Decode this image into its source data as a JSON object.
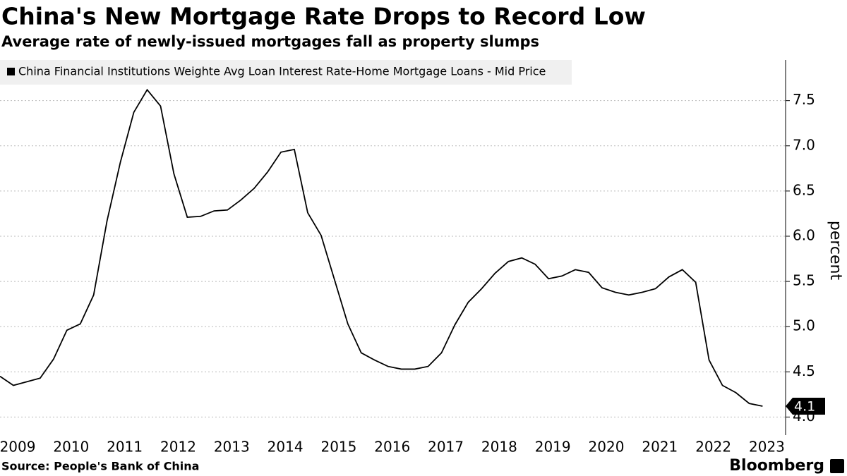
{
  "chart_data": {
    "type": "line",
    "title": "China's New Mortgage Rate Drops to Record Low",
    "subtitle": "Average rate of newly-issued mortgages fall as property slumps",
    "y_label": "percent",
    "source": "Source: People's Bank of China",
    "brand": "Bloomberg",
    "x": [
      2009.17,
      2009.42,
      2009.67,
      2009.92,
      2010.17,
      2010.42,
      2010.67,
      2010.92,
      2011.17,
      2011.42,
      2011.67,
      2011.92,
      2012.17,
      2012.42,
      2012.67,
      2012.92,
      2013.17,
      2013.42,
      2013.67,
      2013.92,
      2014.17,
      2014.42,
      2014.67,
      2014.92,
      2015.17,
      2015.42,
      2015.67,
      2015.92,
      2016.17,
      2016.42,
      2016.67,
      2016.92,
      2017.17,
      2017.42,
      2017.67,
      2017.92,
      2018.17,
      2018.42,
      2018.67,
      2018.92,
      2019.17,
      2019.42,
      2019.67,
      2019.92,
      2020.17,
      2020.42,
      2020.67,
      2020.92,
      2021.17,
      2021.42,
      2021.67,
      2021.92,
      2022.17,
      2022.42,
      2022.67,
      2022.92,
      2023.17,
      2023.42
    ],
    "series": [
      {
        "name": "China Financial Institutions Weighte Avg Loan Interest Rate-Home Mortgage Loans - Mid Price",
        "color": "#000000",
        "values": [
          4.45,
          4.35,
          4.39,
          4.43,
          4.64,
          4.96,
          5.03,
          5.35,
          6.17,
          6.82,
          7.37,
          7.62,
          7.44,
          6.69,
          6.21,
          6.22,
          6.28,
          6.29,
          6.4,
          6.53,
          6.71,
          6.93,
          6.96,
          6.26,
          6.01,
          5.52,
          5.03,
          4.71,
          4.63,
          4.56,
          4.53,
          4.53,
          4.56,
          4.71,
          5.02,
          5.27,
          5.42,
          5.59,
          5.72,
          5.76,
          5.69,
          5.53,
          5.56,
          5.63,
          5.6,
          5.43,
          5.38,
          5.35,
          5.38,
          5.42,
          5.55,
          5.63,
          5.49,
          4.63,
          4.35,
          4.27,
          4.15,
          4.12
        ],
        "value_labels": [
          null,
          null,
          null,
          null,
          null,
          null,
          null,
          null,
          null,
          null,
          null,
          null,
          null,
          null,
          null,
          null,
          null,
          null,
          null,
          null,
          null,
          null,
          null,
          null,
          null,
          null,
          null,
          null,
          null,
          null,
          null,
          null,
          null,
          null,
          null,
          null,
          null,
          null,
          null,
          null,
          null,
          null,
          null,
          null,
          null,
          null,
          null,
          null,
          null,
          null,
          null,
          null,
          null,
          null,
          null,
          null,
          null,
          "4.1"
        ]
      }
    ],
    "xlim": [
      2009.17,
      2023.85
    ],
    "xticks": [
      {
        "value": 2009.5,
        "label": "2009"
      },
      {
        "value": 2010.5,
        "label": "2010"
      },
      {
        "value": 2011.5,
        "label": "2011"
      },
      {
        "value": 2012.5,
        "label": "2012"
      },
      {
        "value": 2013.5,
        "label": "2013"
      },
      {
        "value": 2014.5,
        "label": "2014"
      },
      {
        "value": 2015.5,
        "label": "2015"
      },
      {
        "value": 2016.5,
        "label": "2016"
      },
      {
        "value": 2017.5,
        "label": "2017"
      },
      {
        "value": 2018.5,
        "label": "2018"
      },
      {
        "value": 2019.5,
        "label": "2019"
      },
      {
        "value": 2020.5,
        "label": "2020"
      },
      {
        "value": 2021.5,
        "label": "2021"
      },
      {
        "value": 2022.5,
        "label": "2022"
      },
      {
        "value": 2023.5,
        "label": "2023"
      }
    ],
    "ylim": [
      3.8,
      7.95
    ],
    "yticks": [
      {
        "value": 4,
        "label": "4.0"
      },
      4.5,
      {
        "value": 5,
        "label": "5.0"
      },
      5.5,
      {
        "value": 6,
        "label": "6.0"
      },
      6.5,
      {
        "value": 7,
        "label": "7.0"
      },
      7.5
    ],
    "grid": true
  }
}
